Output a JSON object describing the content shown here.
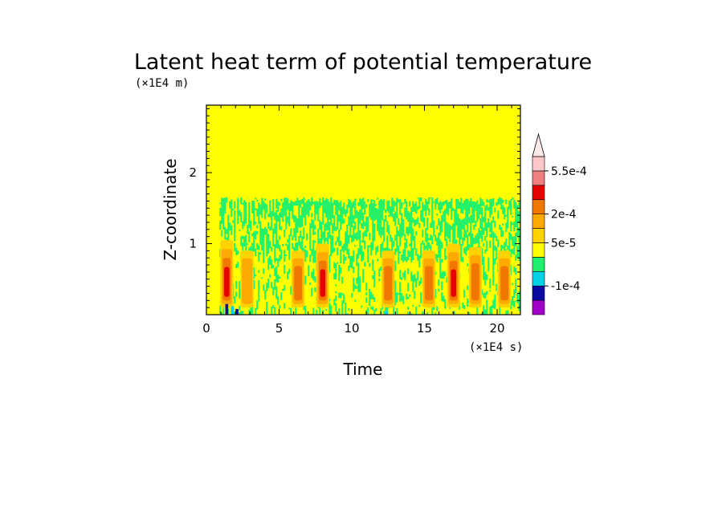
{
  "chart_data": {
    "type": "heatmap",
    "title": "Latent heat term of potential temperature",
    "xlabel": "Time",
    "ylabel": "Z-coordinate",
    "x_unit": "(×1E4 s)",
    "y_unit": "(×1E4 m)",
    "xlim": [
      0,
      21.6
    ],
    "ylim": [
      0,
      2.95
    ],
    "x_ticks": [
      0,
      5,
      10,
      15,
      20
    ],
    "x_tick_labels": [
      "0",
      "5",
      "10",
      "15",
      "20"
    ],
    "y_ticks": [
      1,
      2
    ],
    "y_tick_labels": [
      "1",
      "2"
    ],
    "colorbar": {
      "tick_labels": [
        "5.5e-4",
        "2e-4",
        "5e-5",
        "-1e-4"
      ],
      "levels": [
        "purple",
        "navy",
        "cyan",
        "green",
        "yellow",
        "light-orange",
        "orange",
        "dark-orange",
        "red",
        "salmon",
        "pink",
        "overflow"
      ],
      "colors": [
        "#a000c8",
        "#0a0aa0",
        "#00d2e6",
        "#1ef06e",
        "#ffff00",
        "#ffd200",
        "#ffaa00",
        "#f07800",
        "#e60000",
        "#f08080",
        "#ffc8c8",
        "#ffe8e8"
      ]
    },
    "background_level_color": "#ffff00",
    "transition_height_x1E4m": 1.6,
    "convective_bursts": [
      {
        "t_center": 1.4,
        "z_top": 1.05,
        "intensity": "strong"
      },
      {
        "t_center": 2.8,
        "z_top": 0.9,
        "intensity": "weak"
      },
      {
        "t_center": 6.3,
        "z_top": 0.9,
        "intensity": "moderate"
      },
      {
        "t_center": 8.0,
        "z_top": 1.0,
        "intensity": "strong"
      },
      {
        "t_center": 12.5,
        "z_top": 0.9,
        "intensity": "moderate"
      },
      {
        "t_center": 15.3,
        "z_top": 0.9,
        "intensity": "moderate"
      },
      {
        "t_center": 17.0,
        "z_top": 1.0,
        "intensity": "strong"
      },
      {
        "t_center": 18.5,
        "z_top": 0.95,
        "intensity": "moderate"
      },
      {
        "t_center": 20.5,
        "z_top": 0.9,
        "intensity": "moderate"
      }
    ]
  }
}
